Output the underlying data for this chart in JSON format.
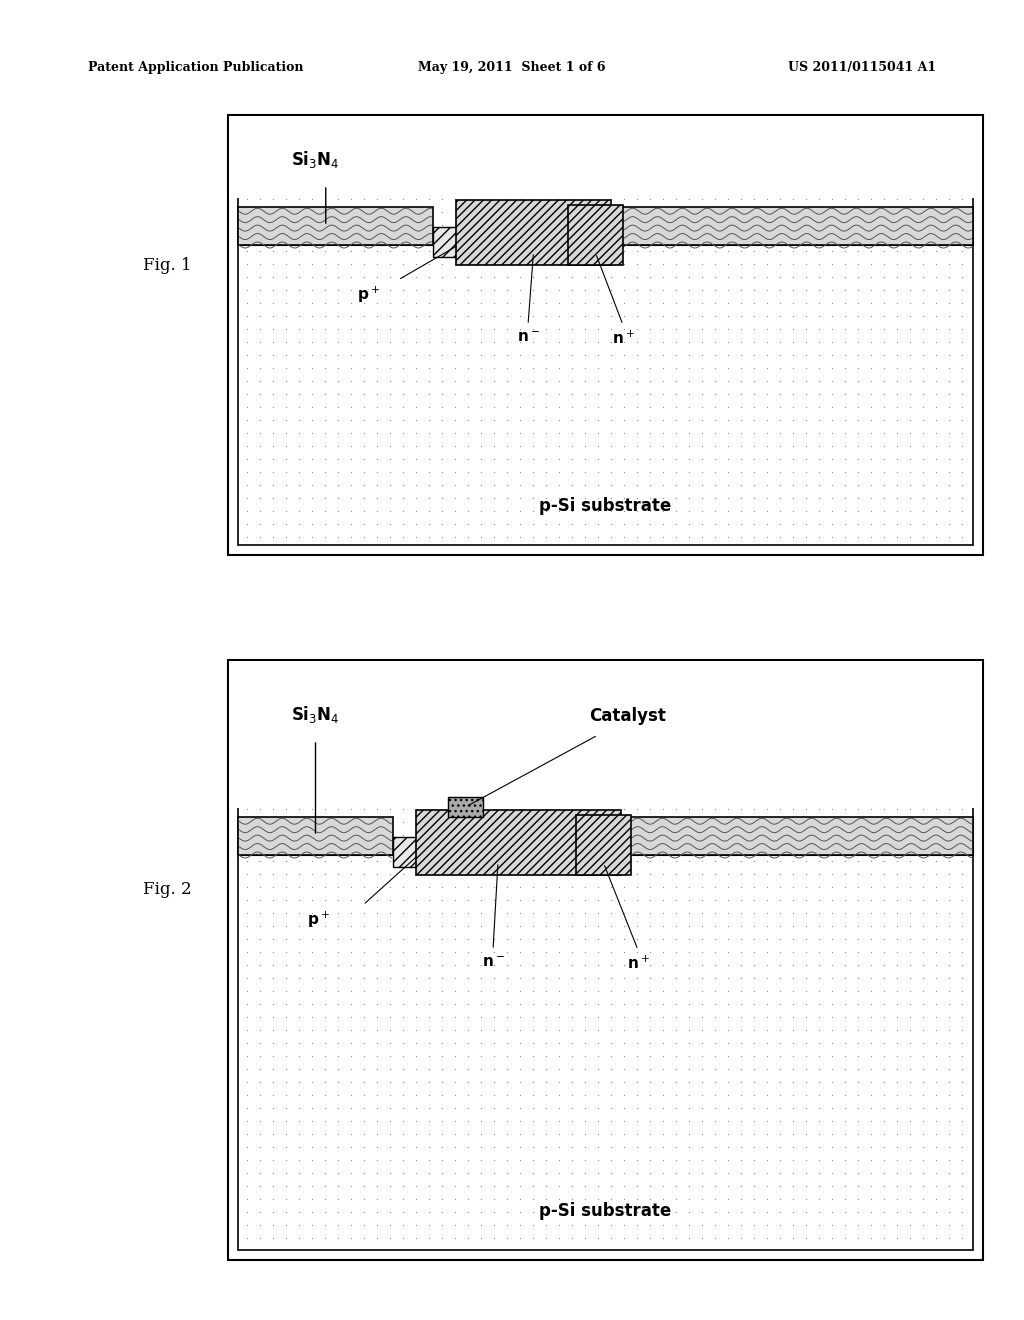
{
  "bg_color": "#ffffff",
  "header_left": "Patent Application Publication",
  "header_mid": "May 19, 2011  Sheet 1 of 6",
  "header_right": "US 2011/0115041 A1",
  "fig1_label": "Fig. 1",
  "fig2_label": "Fig. 2",
  "substrate_label": "p-Si substrate",
  "p_plus_label": "p$^+$",
  "n_label": "n$^-$",
  "n_plus_label": "n$^+$",
  "si3n4_label": "Si$_3$N$_4$",
  "catalyst_label": "Catalyst",
  "dot_color": "#888888",
  "wave_facecolor": "#d8d8d8",
  "diag_facecolor": "#d0d0d0",
  "sub_facecolor": "#ffffff"
}
